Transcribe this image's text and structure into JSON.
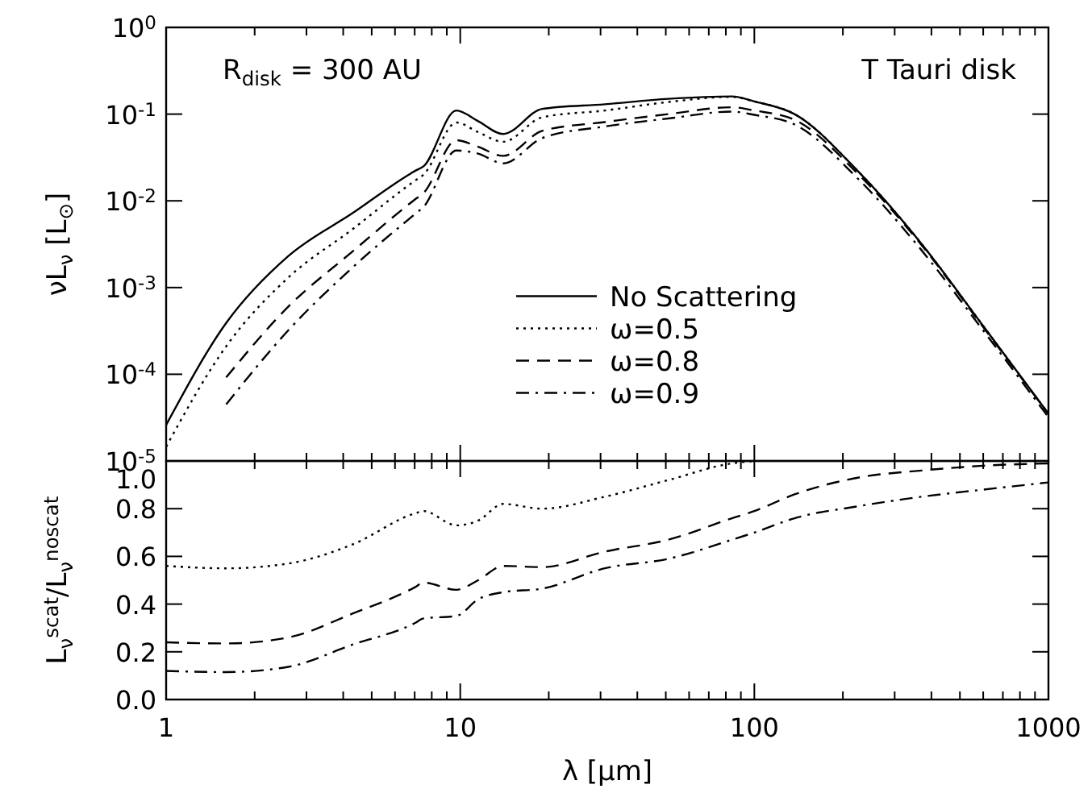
{
  "chart_data": [
    {
      "type": "line",
      "ylabel": "νL$_{ν}$ [L$_{⊙}$]",
      "annotations": [
        "R$_{disk}$ = 300 AU",
        "T Tauri disk"
      ],
      "log": "xy",
      "xlim": [
        1,
        1000
      ],
      "xticks": [
        1,
        10,
        100,
        1000
      ],
      "ylim": [
        1e-05,
        1
      ],
      "yticks": [
        {
          "value": 1,
          "label": "10$^{0}$"
        },
        {
          "value": 0.1,
          "label": "10$^{-1}$"
        },
        {
          "value": 0.01,
          "label": "10$^{-2}$"
        },
        {
          "value": 0.001,
          "label": "10$^{-3}$"
        },
        {
          "value": 0.0001,
          "label": "10$^{-4}$"
        },
        {
          "value": 1e-05,
          "label": "10$^{-5}$"
        }
      ],
      "tick_labels": "y",
      "legend": "right",
      "grid": false,
      "x": [
        1,
        1.6,
        2.6,
        4.3,
        7,
        7.5,
        9.7,
        11.5,
        14,
        19,
        31,
        51,
        84,
        100,
        137,
        225,
        370,
        600,
        1000
      ],
      "series": [
        {
          "name": "No Scattering",
          "color": "#000000",
          "line_style": "solid",
          "values": [
            2.6e-05,
            0.00039,
            0.0023,
            0.0072,
            0.022,
            0.025,
            0.11,
            0.083,
            0.059,
            0.115,
            0.13,
            0.15,
            0.16,
            0.14,
            0.1,
            0.022,
            0.0032,
            0.00036,
            3.5e-05
          ]
        },
        {
          "name": "ω=0.5",
          "color": "#000000",
          "line_style": "dotted",
          "values": [
            1.46e-05,
            0.00021,
            0.0013,
            0.0047,
            0.017,
            0.02,
            0.08,
            0.062,
            0.048,
            0.092,
            0.11,
            0.138,
            0.158,
            0.14,
            0.1,
            0.022,
            0.0032,
            0.00036,
            3.5e-05
          ]
        },
        {
          "name": "ω=0.8",
          "color": "#000000",
          "line_style": "dashed",
          "values": [
            null,
            9.2e-05,
            0.0006,
            0.0026,
            0.0103,
            0.0123,
            0.05,
            0.042,
            0.033,
            0.064,
            0.081,
            0.1,
            0.12,
            0.11,
            0.086,
            0.0205,
            0.0031,
            0.00035,
            3.5e-05
          ]
        },
        {
          "name": "ω=0.9",
          "color": "#000000",
          "line_style": "dashdot",
          "values": [
            null,
            4.5e-05,
            0.00032,
            0.0017,
            0.007,
            0.0085,
            0.038,
            0.035,
            0.027,
            0.053,
            0.072,
            0.089,
            0.107,
            0.098,
            0.076,
            0.018,
            0.0027,
            0.00032,
            3.2e-05
          ]
        }
      ]
    },
    {
      "type": "line",
      "xlabel": "λ [μm]",
      "ylabel": "L$_{ν}$$^{scat}$/L$_{ν}$$^{noscat}$",
      "log": "x",
      "xlim": [
        1,
        1000
      ],
      "xticks": [
        1,
        10,
        100,
        1000
      ],
      "ylim": [
        0,
        1
      ],
      "yticks": [
        {
          "value": 0,
          "label": "0.0"
        },
        0.2,
        0.4,
        0.6,
        0.8,
        {
          "value": 1,
          "label": "1.0"
        }
      ],
      "grid": false,
      "x": [
        1,
        1.6,
        2.6,
        4.3,
        7,
        7.5,
        9.7,
        11.5,
        14,
        19,
        31,
        51,
        84,
        100,
        137,
        225,
        370,
        600,
        1000
      ],
      "series": [
        {
          "color": "#000000",
          "line_style": "dotted",
          "values": [
            0.56,
            0.55,
            0.57,
            0.65,
            0.78,
            0.79,
            0.73,
            0.75,
            0.82,
            0.8,
            0.85,
            0.92,
            0.99,
            1,
            null,
            null,
            null,
            null,
            null
          ]
        },
        {
          "color": "#000000",
          "line_style": "dashed",
          "values": [
            0.24,
            0.235,
            0.26,
            0.36,
            0.47,
            0.49,
            0.46,
            0.5,
            0.56,
            0.555,
            0.62,
            0.67,
            0.76,
            0.79,
            0.86,
            0.93,
            0.96,
            0.98,
            0.99
          ]
        },
        {
          "color": "#000000",
          "line_style": "dashdot",
          "values": [
            0.12,
            0.115,
            0.137,
            0.23,
            0.32,
            0.34,
            0.35,
            0.42,
            0.45,
            0.465,
            0.55,
            0.59,
            0.67,
            0.7,
            0.76,
            0.81,
            0.85,
            0.88,
            0.91
          ]
        }
      ]
    }
  ]
}
